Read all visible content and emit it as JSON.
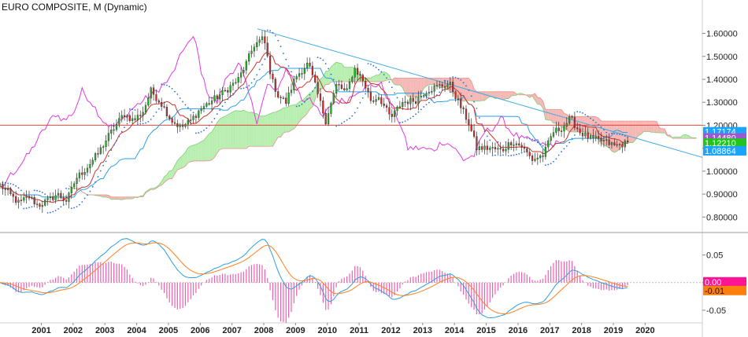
{
  "chart_data": [
    {
      "type": "candlestick",
      "title": "EURO COMPOSITE, M (Dynamic)",
      "x_range": [
        2000.2,
        2022.3
      ],
      "y_range": [
        0.76,
        1.66
      ],
      "y_ticks": [
        "0.80000",
        "0.90000",
        "1.00000",
        "1.10000",
        "1.20000",
        "1.30000",
        "1.40000",
        "1.50000",
        "1.60000"
      ],
      "x_ticks": [
        "2001",
        "2002",
        "2003",
        "2004",
        "2005",
        "2006",
        "2007",
        "2008",
        "2009",
        "2010",
        "2011",
        "2012",
        "2013",
        "2014",
        "2015",
        "2016",
        "2017",
        "2018",
        "2019",
        "2020"
      ],
      "price_anchors": [
        [
          2000.2,
          0.94
        ],
        [
          2000.5,
          0.9
        ],
        [
          2000.8,
          0.86
        ],
        [
          2001.1,
          0.89
        ],
        [
          2001.4,
          0.85
        ],
        [
          2001.8,
          0.88
        ],
        [
          2002.0,
          0.9
        ],
        [
          2002.3,
          0.87
        ],
        [
          2002.6,
          0.97
        ],
        [
          2002.9,
          1.01
        ],
        [
          2003.3,
          1.08
        ],
        [
          2003.6,
          1.15
        ],
        [
          2003.9,
          1.21
        ],
        [
          2004.1,
          1.25
        ],
        [
          2004.4,
          1.22
        ],
        [
          2004.7,
          1.26
        ],
        [
          2004.95,
          1.35
        ],
        [
          2005.3,
          1.29
        ],
        [
          2005.6,
          1.22
        ],
        [
          2005.9,
          1.19
        ],
        [
          2006.2,
          1.22
        ],
        [
          2006.5,
          1.27
        ],
        [
          2006.9,
          1.31
        ],
        [
          2007.3,
          1.35
        ],
        [
          2007.7,
          1.4
        ],
        [
          2007.95,
          1.47
        ],
        [
          2008.2,
          1.55
        ],
        [
          2008.5,
          1.58
        ],
        [
          2008.75,
          1.4
        ],
        [
          2008.95,
          1.33
        ],
        [
          2009.2,
          1.3
        ],
        [
          2009.5,
          1.41
        ],
        [
          2009.9,
          1.47
        ],
        [
          2010.1,
          1.38
        ],
        [
          2010.45,
          1.22
        ],
        [
          2010.8,
          1.38
        ],
        [
          2011.1,
          1.34
        ],
        [
          2011.35,
          1.45
        ],
        [
          2011.6,
          1.4
        ],
        [
          2011.9,
          1.3
        ],
        [
          2012.1,
          1.33
        ],
        [
          2012.5,
          1.23
        ],
        [
          2012.85,
          1.3
        ],
        [
          2013.3,
          1.31
        ],
        [
          2013.6,
          1.35
        ],
        [
          2014.0,
          1.37
        ],
        [
          2014.35,
          1.38
        ],
        [
          2014.7,
          1.28
        ],
        [
          2014.95,
          1.21
        ],
        [
          2015.2,
          1.1
        ],
        [
          2015.6,
          1.1
        ],
        [
          2016.0,
          1.09
        ],
        [
          2016.3,
          1.13
        ],
        [
          2016.6,
          1.11
        ],
        [
          2016.95,
          1.05
        ],
        [
          2017.3,
          1.07
        ],
        [
          2017.6,
          1.17
        ],
        [
          2017.9,
          1.19
        ],
        [
          2018.15,
          1.23
        ],
        [
          2018.45,
          1.17
        ],
        [
          2018.8,
          1.14
        ],
        [
          2019.2,
          1.13
        ],
        [
          2019.55,
          1.11
        ],
        [
          2019.85,
          1.12
        ]
      ],
      "current_price_labels": [
        {
          "value": 1.17174,
          "text": "1.17174",
          "color": "#1aa3ff"
        },
        {
          "value": 1.1448,
          "text": "1.14480",
          "color": "#9b59d0"
        },
        {
          "value": 1.1221,
          "text": "1.12210",
          "color": "#22c41e"
        },
        {
          "value": 1.08864,
          "text": "1.08864",
          "color": "#1aa3ff"
        }
      ],
      "horizontal_line": {
        "value": 1.2,
        "color": "#e8453c"
      },
      "trendline": {
        "x": [
          2008.3,
          2022.3
        ],
        "y": [
          1.62,
          1.06
        ],
        "color": "#3fa9e8"
      },
      "indicator": "Ichimoku cloud with Tenkan/Kijun/Chikou lines and Parabolic SAR",
      "colors": {
        "bull": "#22b422",
        "bear": "#d42a2a",
        "cloud_bull": "#b8efb0",
        "cloud_bear": "#f5b8b4",
        "chikou": "#e23ae0",
        "kijun": "#2aa0e8",
        "tenkan": "#c8342c",
        "sar": "#2a6fd8"
      }
    },
    {
      "type": "macd",
      "x_range": [
        2000.2,
        2022.3
      ],
      "y_range": [
        -0.07,
        0.085
      ],
      "y_ticks": [
        "0.05",
        "0.00",
        "-0.05"
      ],
      "current_value_labels": [
        {
          "value": 0.0,
          "text": "0.00",
          "color": "#ff1493"
        },
        {
          "value": -0.01,
          "text": "-0.01",
          "color": "#ff7f0e"
        }
      ],
      "colors": {
        "macd": "#2a9fe0",
        "signal": "#ff7f1e",
        "histogram": "#f060b0"
      }
    }
  ]
}
